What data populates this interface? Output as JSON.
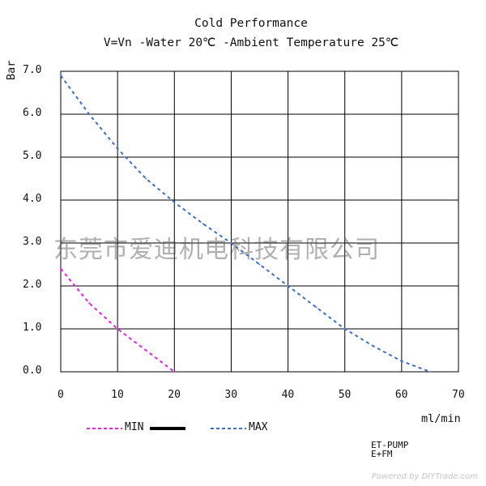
{
  "chart_data": {
    "type": "line",
    "title": "Cold Performance",
    "subtitle": "V=Vn -Water 20℃ -Ambient Temperature 25℃",
    "xlabel": "ml/min",
    "ylabel": "Bar",
    "xlim": [
      0,
      70
    ],
    "ylim": [
      0,
      7
    ],
    "xticks": [
      "0",
      "10",
      "20",
      "30",
      "40",
      "50",
      "60",
      "70"
    ],
    "yticks": [
      "0.0",
      "1.0",
      "2.0",
      "3.0",
      "4.0",
      "5.0",
      "6.0",
      "7.0"
    ],
    "grid": true,
    "legend_placement": "bottom",
    "legend": [
      {
        "name": "MIN",
        "color": "#e61ee6",
        "style": "dashed"
      },
      {
        "name": "",
        "color": "#000000",
        "style": "solid-thick"
      },
      {
        "name": "MAX",
        "color": "#3c6ec8",
        "style": "dashed"
      }
    ],
    "series": [
      {
        "name": "MAX",
        "color": "#3c6ec8",
        "x": [
          0,
          5,
          10,
          15,
          20,
          25,
          30,
          35,
          40,
          45,
          50,
          55,
          60,
          65
        ],
        "y": [
          6.9,
          6.0,
          5.2,
          4.5,
          3.95,
          3.45,
          3.0,
          2.5,
          2.0,
          1.5,
          1.0,
          0.6,
          0.25,
          0.0
        ]
      },
      {
        "name": "MIN",
        "color": "#e61ee6",
        "x": [
          0,
          5,
          10,
          15,
          20
        ],
        "y": [
          2.4,
          1.6,
          1.0,
          0.5,
          0.0
        ]
      }
    ]
  },
  "product": {
    "line1": "ET-PUMP",
    "line2": "E+FM"
  },
  "watermark": "东莞市爱迪机电科技有限公司",
  "footer": "Powered by DIYTrade.com"
}
